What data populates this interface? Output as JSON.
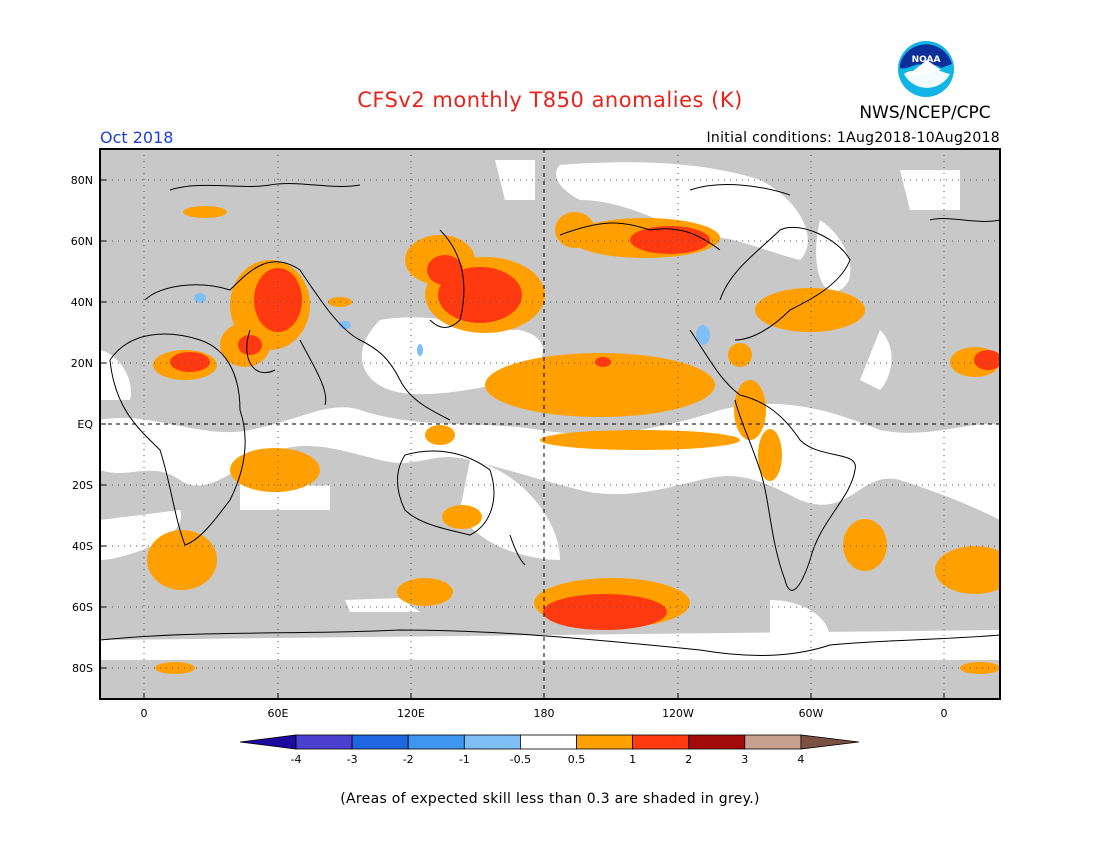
{
  "header": {
    "title": "CFSv2 monthly T850 anomalies (K)",
    "organization": "NWS/NCEP/CPC",
    "logo_text": "NOAA",
    "month": "Oct 2018",
    "initial_conditions": "Initial conditions: 1Aug2018-10Aug2018"
  },
  "map": {
    "lat_labels": [
      "80N",
      "60N",
      "40N",
      "20N",
      "EQ",
      "20S",
      "40S",
      "60S",
      "80S"
    ],
    "lon_labels": [
      "0",
      "60E",
      "120E",
      "180",
      "120W",
      "60W",
      "0"
    ]
  },
  "legend": {
    "thresholds": [
      "-4",
      "-3",
      "-2",
      "-1",
      "-0.5",
      "0.5",
      "1",
      "2",
      "3",
      "4"
    ],
    "colors": [
      "#1c0aa0",
      "#4b3fd0",
      "#1f66e0",
      "#3f96f0",
      "#7fbff5",
      "#ffffff",
      "#ffa000",
      "#ff3a10",
      "#a30a0a",
      "#c8a090",
      "#7a5040"
    ]
  },
  "colors": {
    "low_skill": "#c8c8c8",
    "anom_05_1": "#ffa000",
    "anom_1_2": "#ff3a10",
    "anom_neg": "#7fbff5"
  },
  "footer": {
    "note": "(Areas of expected skill less than 0.3 are shaded in grey.)"
  }
}
